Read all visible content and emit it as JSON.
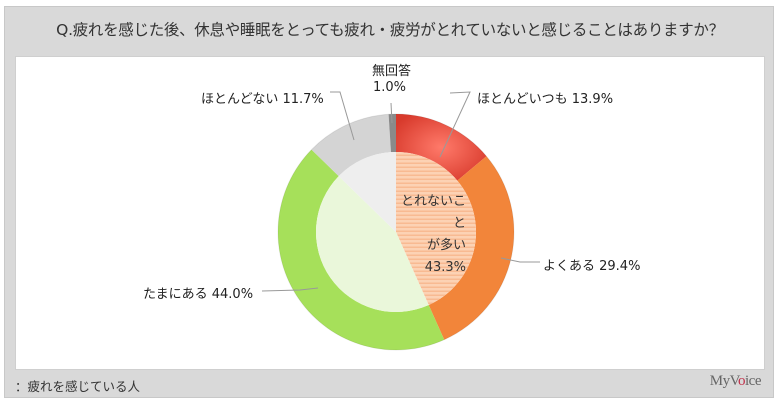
{
  "header": {
    "title": "Q.疲れを感じた後、休息や睡眠をとっても疲れ・疲労がとれていないと感じることはありますか？"
  },
  "footer": {
    "note": "：疲れを感じている人",
    "brand": "MyVoice"
  },
  "chart_data": {
    "type": "pie",
    "subtype": "donut-with-inner-summary",
    "title": "Q.疲れを感じた後、休息や睡眠をとっても疲れ・疲労がとれていないと感じることはありますか？",
    "categories": [
      "ほとんどいつも",
      "よくある",
      "たまにある",
      "ほとんどない",
      "無回答"
    ],
    "values": [
      13.9,
      29.4,
      44.0,
      11.7,
      1.0
    ],
    "colors": [
      "#e8473a",
      "#f2853a",
      "#a6e05a",
      "#d4d4d4",
      "#8a8a8a"
    ],
    "inner_summary": {
      "label_line1": "とれないこと",
      "label_line2": "が多い",
      "value": 43.3,
      "value_text": "43.3%",
      "includes": [
        "ほとんどいつも",
        "よくある"
      ]
    },
    "labels": {
      "c0": "ほとんどいつも 13.9%",
      "c1": "よくある 29.4%",
      "c2": "たまにある 44.0%",
      "c3": "ほとんどない 11.7%",
      "c4_name": "無回答",
      "c4_value": "1.0%"
    },
    "unit": "%"
  }
}
